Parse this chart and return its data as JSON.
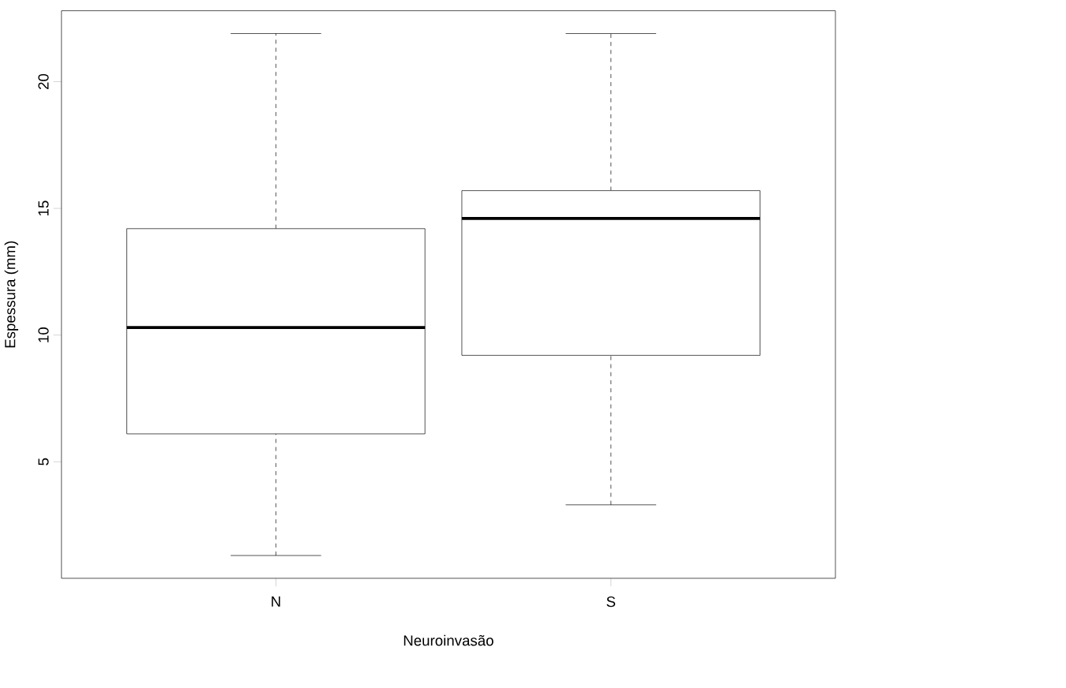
{
  "chart_data": {
    "type": "box",
    "xlabel": "Neuroinvasão",
    "ylabel": "Espessura (mm)",
    "categories": [
      "N",
      "S"
    ],
    "boxes": [
      {
        "low": 1.3,
        "q1": 6.1,
        "median": 10.3,
        "q3": 14.2,
        "high": 21.9
      },
      {
        "low": 3.3,
        "q1": 9.2,
        "median": 14.6,
        "q3": 15.7,
        "high": 21.9
      }
    ],
    "ylim": [
      0.4,
      22.8
    ],
    "yticks": [
      5,
      10,
      15,
      20
    ]
  }
}
